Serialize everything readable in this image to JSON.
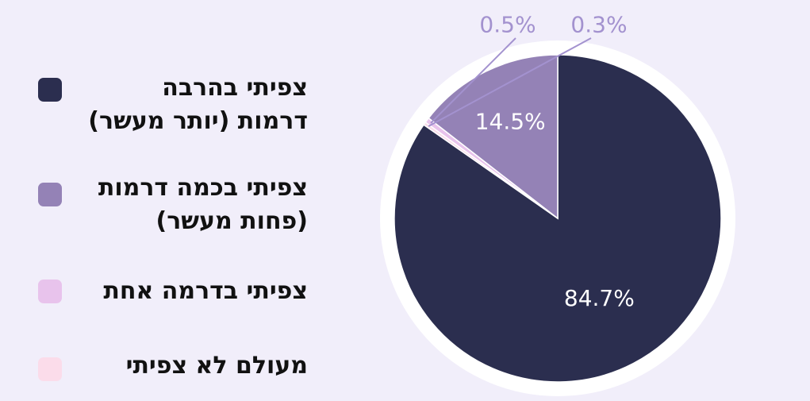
{
  "chart_data": {
    "type": "pie",
    "categories": [
      "צפיתי בהרבה\nדרמות (יותר מעשר)",
      "צפיתי בכמה דרמות\n(פחות מעשר)",
      "צפיתי בדרמה אחת",
      "מעולם לא צפיתי"
    ],
    "values": [
      84.7,
      14.5,
      0.5,
      0.3
    ],
    "data_labels": [
      "84.7%",
      "14.5%",
      "0.5%",
      "0.3%"
    ],
    "colors": [
      "#2b2e4f",
      "#9482b6",
      "#e8c3ec",
      "#fbdcea"
    ],
    "legend_position": "left"
  }
}
